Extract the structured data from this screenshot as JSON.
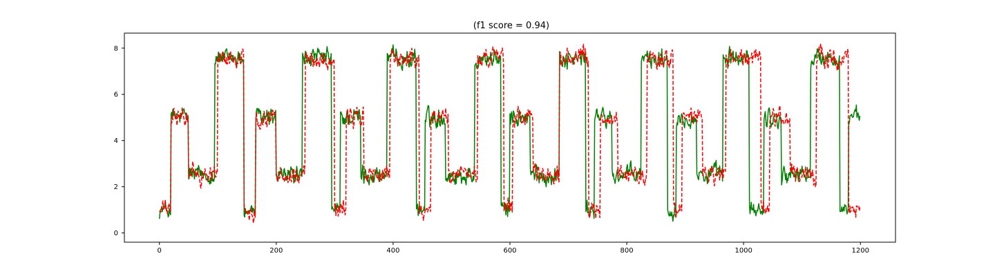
{
  "chart_data": {
    "type": "line",
    "title": "(f1 score = 0.94)",
    "xlabel": "",
    "ylabel": "",
    "xlim": [
      -60,
      1260
    ],
    "ylim": [
      -0.4,
      8.65
    ],
    "x_ticks": [
      0,
      200,
      400,
      600,
      800,
      1000,
      1200
    ],
    "y_ticks": [
      0,
      2,
      4,
      6,
      8
    ],
    "grid": false,
    "legend": "none",
    "n_points": 1200,
    "series": [
      {
        "style": "solid",
        "color": "#008000",
        "segments": [
          {
            "x0": 0,
            "x1": 20,
            "level": 1.0
          },
          {
            "x0": 20,
            "x1": 50,
            "level": 5.0
          },
          {
            "x0": 50,
            "x1": 95,
            "level": 2.55
          },
          {
            "x0": 95,
            "x1": 145,
            "level": 7.55
          },
          {
            "x0": 145,
            "x1": 165,
            "level": 0.95
          },
          {
            "x0": 165,
            "x1": 200,
            "level": 5.0
          },
          {
            "x0": 200,
            "x1": 245,
            "level": 2.5
          },
          {
            "x0": 245,
            "x1": 295,
            "level": 7.55
          },
          {
            "x0": 295,
            "x1": 310,
            "level": 1.0
          },
          {
            "x0": 310,
            "x1": 345,
            "level": 5.0
          },
          {
            "x0": 345,
            "x1": 390,
            "level": 2.5
          },
          {
            "x0": 390,
            "x1": 440,
            "level": 7.55
          },
          {
            "x0": 440,
            "x1": 455,
            "level": 1.0
          },
          {
            "x0": 455,
            "x1": 490,
            "level": 5.0
          },
          {
            "x0": 490,
            "x1": 540,
            "level": 2.5
          },
          {
            "x0": 540,
            "x1": 585,
            "level": 7.55
          },
          {
            "x0": 585,
            "x1": 600,
            "level": 1.0
          },
          {
            "x0": 600,
            "x1": 635,
            "level": 5.0
          },
          {
            "x0": 635,
            "x1": 685,
            "level": 2.5
          },
          {
            "x0": 685,
            "x1": 730,
            "level": 7.55
          },
          {
            "x0": 730,
            "x1": 745,
            "level": 1.0
          },
          {
            "x0": 745,
            "x1": 775,
            "level": 5.0
          },
          {
            "x0": 775,
            "x1": 825,
            "level": 2.5
          },
          {
            "x0": 825,
            "x1": 870,
            "level": 7.55
          },
          {
            "x0": 870,
            "x1": 885,
            "level": 1.0
          },
          {
            "x0": 885,
            "x1": 920,
            "level": 5.0
          },
          {
            "x0": 920,
            "x1": 965,
            "level": 2.5
          },
          {
            "x0": 965,
            "x1": 1010,
            "level": 7.55
          },
          {
            "x0": 1010,
            "x1": 1035,
            "level": 1.0
          },
          {
            "x0": 1035,
            "x1": 1065,
            "level": 5.0
          },
          {
            "x0": 1065,
            "x1": 1115,
            "level": 2.5
          },
          {
            "x0": 1115,
            "x1": 1165,
            "level": 7.55
          },
          {
            "x0": 1165,
            "x1": 1180,
            "level": 1.0
          },
          {
            "x0": 1180,
            "x1": 1200,
            "level": 5.0
          }
        ]
      },
      {
        "style": "dashed",
        "color": "#ff0000",
        "segments": [
          {
            "x0": 0,
            "x1": 20,
            "level": 1.0
          },
          {
            "x0": 20,
            "x1": 50,
            "level": 5.0
          },
          {
            "x0": 50,
            "x1": 100,
            "level": 2.55
          },
          {
            "x0": 100,
            "x1": 145,
            "level": 7.55
          },
          {
            "x0": 145,
            "x1": 165,
            "level": 0.95
          },
          {
            "x0": 165,
            "x1": 200,
            "level": 5.0
          },
          {
            "x0": 200,
            "x1": 250,
            "level": 2.5
          },
          {
            "x0": 250,
            "x1": 300,
            "level": 7.55
          },
          {
            "x0": 300,
            "x1": 320,
            "level": 1.0
          },
          {
            "x0": 320,
            "x1": 350,
            "level": 5.0
          },
          {
            "x0": 350,
            "x1": 395,
            "level": 2.5
          },
          {
            "x0": 395,
            "x1": 445,
            "level": 7.55
          },
          {
            "x0": 445,
            "x1": 465,
            "level": 1.0
          },
          {
            "x0": 465,
            "x1": 495,
            "level": 5.0
          },
          {
            "x0": 495,
            "x1": 545,
            "level": 2.5
          },
          {
            "x0": 545,
            "x1": 590,
            "level": 7.55
          },
          {
            "x0": 590,
            "x1": 605,
            "level": 1.0
          },
          {
            "x0": 605,
            "x1": 640,
            "level": 5.0
          },
          {
            "x0": 640,
            "x1": 685,
            "level": 2.5
          },
          {
            "x0": 685,
            "x1": 735,
            "level": 7.55
          },
          {
            "x0": 735,
            "x1": 755,
            "level": 1.0
          },
          {
            "x0": 755,
            "x1": 785,
            "level": 5.0
          },
          {
            "x0": 785,
            "x1": 835,
            "level": 2.5
          },
          {
            "x0": 835,
            "x1": 880,
            "level": 7.55
          },
          {
            "x0": 880,
            "x1": 895,
            "level": 1.0
          },
          {
            "x0": 895,
            "x1": 930,
            "level": 5.0
          },
          {
            "x0": 930,
            "x1": 970,
            "level": 2.5
          },
          {
            "x0": 970,
            "x1": 1030,
            "level": 7.55
          },
          {
            "x0": 1030,
            "x1": 1045,
            "level": 1.0
          },
          {
            "x0": 1045,
            "x1": 1080,
            "level": 5.0
          },
          {
            "x0": 1080,
            "x1": 1125,
            "level": 2.5
          },
          {
            "x0": 1125,
            "x1": 1180,
            "level": 7.55
          },
          {
            "x0": 1180,
            "x1": 1200,
            "level": 1.0
          }
        ]
      }
    ]
  }
}
